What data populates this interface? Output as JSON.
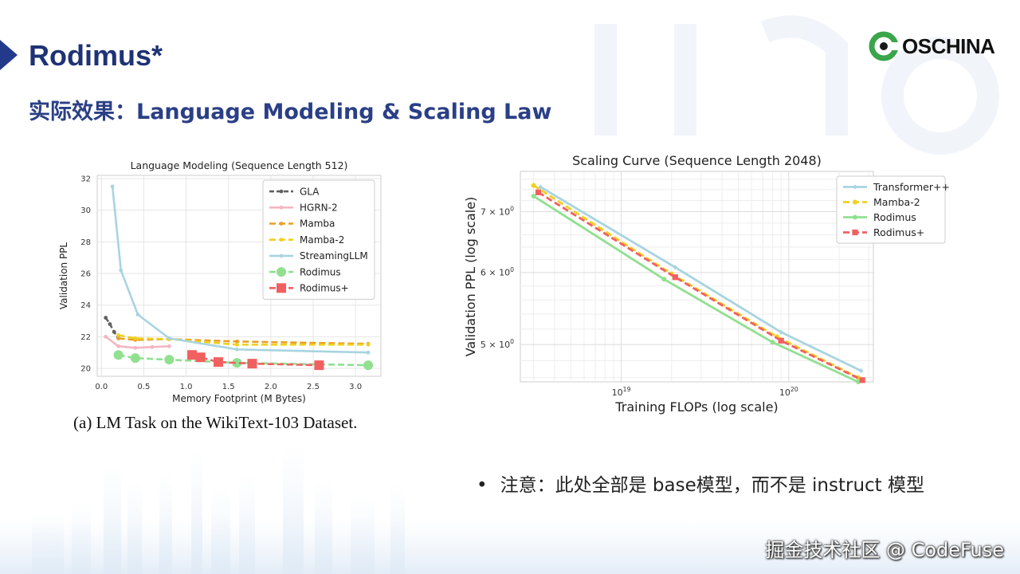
{
  "slide": {
    "title": "Rodimus*",
    "subtitle": "实际效果：Language Modeling & Scaling Law",
    "logo_text": "OSCHINA",
    "caption": "(a) LM Task on the WikiText-103 Dataset.",
    "note": "注意：此处全部是 base模型，而不是 instruct 模型",
    "note_bullet": "•",
    "watermark": "掘金技术社区 @ CodeFuse",
    "colors": {
      "title": "#1e3275",
      "accent": "#233a8c",
      "logo_green": "#3aa54a"
    }
  },
  "chart_data": [
    {
      "type": "line",
      "title": "Language Modeling (Sequence Length 512)",
      "xlabel": "Memory Footprint (M Bytes)",
      "ylabel": "Validation PPL",
      "xlim": [
        -0.05,
        3.3
      ],
      "ylim": [
        19.5,
        32.2
      ],
      "xticks": [
        "0.0",
        "0.5",
        "1.0",
        "1.5",
        "2.0",
        "2.5",
        "3.0"
      ],
      "xtick_values": [
        0,
        0.5,
        1.0,
        1.5,
        2.0,
        2.5,
        3.0
      ],
      "yticks": [
        "20",
        "22",
        "24",
        "26",
        "28",
        "30",
        "32"
      ],
      "ytick_values": [
        20,
        22,
        24,
        26,
        28,
        30,
        32
      ],
      "grid": true,
      "legend": "top-right",
      "series": [
        {
          "name": "GLA",
          "color": "#606060",
          "dash": "6,3",
          "marker": "dot",
          "x": [
            0.05,
            0.1,
            0.15,
            0.2
          ],
          "y": [
            23.2,
            22.8,
            22.3,
            21.9
          ]
        },
        {
          "name": "HGRN-2",
          "color": "#f4b6c2",
          "dash": "none",
          "marker": "dot",
          "x": [
            0.05,
            0.2,
            0.4,
            0.6,
            0.8
          ],
          "y": [
            22.0,
            21.4,
            21.3,
            21.35,
            21.4
          ]
        },
        {
          "name": "Mamba",
          "color": "#e8a020",
          "dash": "8,4",
          "marker": "dot",
          "x": [
            0.2,
            0.4,
            0.8,
            1.6,
            3.15
          ],
          "y": [
            21.9,
            21.8,
            21.85,
            21.7,
            21.55
          ]
        },
        {
          "name": "Mamba-2",
          "color": "#f0d020",
          "dash": "8,4",
          "marker": "dot",
          "x": [
            0.2,
            0.4,
            0.8,
            1.6,
            3.15
          ],
          "y": [
            22.1,
            21.9,
            21.85,
            21.5,
            21.5
          ]
        },
        {
          "name": "StreamingLLM",
          "color": "#a8d4e0",
          "dash": "none",
          "marker": "dot",
          "x": [
            0.13,
            0.23,
            0.43,
            0.8,
            1.6,
            3.15
          ],
          "y": [
            31.5,
            26.2,
            23.4,
            21.9,
            21.2,
            21.0
          ]
        },
        {
          "name": "Rodimus",
          "color": "#90e090",
          "dash": "8,4",
          "marker": "circle",
          "x": [
            0.2,
            0.4,
            0.8,
            1.6,
            3.15
          ],
          "y": [
            20.85,
            20.65,
            20.55,
            20.35,
            20.2
          ]
        },
        {
          "name": "Rodimus+",
          "color": "#f06060",
          "dash": "8,4",
          "marker": "square",
          "x": [
            1.07,
            1.17,
            1.38,
            1.78,
            2.57
          ],
          "y": [
            20.85,
            20.7,
            20.4,
            20.3,
            20.2
          ]
        }
      ]
    },
    {
      "type": "line",
      "title": "Scaling Curve (Sequence Length 2048)",
      "xlabel": "Training FLOPs (log scale)",
      "ylabel": "Validation PPL (log scale)",
      "xscale": "log",
      "yscale": "log",
      "xlim": [
        2.5e+18,
        3.2e+20
      ],
      "ylim": [
        4.55,
        7.75
      ],
      "xticks": [
        "10",
        "10"
      ],
      "xtick_exp": [
        "19",
        "20"
      ],
      "xtick_values": [
        1e+19,
        1e+20
      ],
      "yticks": [
        "5 × 10",
        "6 × 10",
        "7 × 10"
      ],
      "ytick_exp": [
        "0",
        "0",
        "0"
      ],
      "ytick_values": [
        5,
        6,
        7
      ],
      "grid": true,
      "legend": "top-right",
      "series": [
        {
          "name": "Transformer++",
          "color": "#a8d4e0",
          "dash": "none",
          "marker": "diamond",
          "x": [
            3.3e+18,
            2.1e+19,
            9e+19,
            2.7e+20
          ],
          "y": [
            7.45,
            6.08,
            5.16,
            4.68
          ]
        },
        {
          "name": "Mamba-2",
          "color": "#f0d020",
          "dash": "8,4",
          "marker": "dot",
          "x": [
            3e+18,
            2e+19,
            8.5e+19,
            2.6e+20
          ],
          "y": [
            7.48,
            5.98,
            5.1,
            4.6
          ]
        },
        {
          "name": "Rodimus",
          "color": "#90e090",
          "dash": "none",
          "marker": "dot",
          "x": [
            3e+18,
            1.8e+19,
            8e+19,
            2.6e+20
          ],
          "y": [
            7.28,
            5.9,
            5.03,
            4.55
          ]
        },
        {
          "name": "Rodimus+",
          "color": "#f06060",
          "dash": "8,4",
          "marker": "square",
          "x": [
            3.2e+18,
            2.1e+19,
            9e+19,
            2.75e+20
          ],
          "y": [
            7.35,
            5.93,
            5.05,
            4.57
          ]
        }
      ]
    }
  ]
}
